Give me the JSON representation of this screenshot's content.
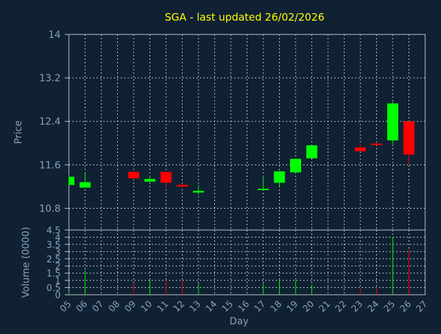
{
  "chart_data": [
    {
      "type": "candlestick",
      "title": "SGA - last updated 26/02/2026",
      "ylabel": "Price",
      "ylim": [
        10.4,
        14.0
      ],
      "yticks": [
        "10.8",
        "11.6",
        "12.4",
        "13.2",
        "14"
      ],
      "grid": true,
      "candles": [
        {
          "day": "05",
          "open": 11.23,
          "close": 11.38,
          "high": 11.42,
          "low": 11.23
        },
        {
          "day": "06",
          "open": 11.18,
          "close": 11.28,
          "high": 11.45,
          "low": 11.18
        },
        {
          "day": "09",
          "open": 11.47,
          "close": 11.35,
          "high": 11.47,
          "low": 11.35
        },
        {
          "day": "10",
          "open": 11.29,
          "close": 11.34,
          "high": 11.4,
          "low": 11.29
        },
        {
          "day": "11",
          "open": 11.47,
          "close": 11.27,
          "high": 11.47,
          "low": 11.18
        },
        {
          "day": "12",
          "open": 11.23,
          "close": 11.2,
          "high": 11.24,
          "low": 11.18
        },
        {
          "day": "13",
          "open": 11.09,
          "close": 11.12,
          "high": 11.23,
          "low": 11.05
        },
        {
          "day": "17",
          "open": 11.15,
          "close": 11.16,
          "high": 11.37,
          "low": 11.15
        },
        {
          "day": "18",
          "open": 11.27,
          "close": 11.48,
          "high": 11.48,
          "low": 11.2
        },
        {
          "day": "19",
          "open": 11.46,
          "close": 11.71,
          "high": 11.72,
          "low": 11.46
        },
        {
          "day": "20",
          "open": 11.72,
          "close": 11.96,
          "high": 11.96,
          "low": 11.72
        },
        {
          "day": "23",
          "open": 11.92,
          "close": 11.85,
          "high": 11.98,
          "low": 11.85
        },
        {
          "day": "24",
          "open": 11.99,
          "close": 11.97,
          "high": 12.02,
          "low": 11.96
        },
        {
          "day": "25",
          "open": 12.05,
          "close": 12.73,
          "high": 12.76,
          "low": 11.98
        },
        {
          "day": "26",
          "open": 12.4,
          "close": 11.79,
          "high": 12.4,
          "low": 11.6
        }
      ]
    },
    {
      "type": "bar",
      "xlabel": "Day",
      "ylabel": "Volume (0000)",
      "ylim": [
        0,
        4.5
      ],
      "yticks": [
        "0",
        "0.5",
        "1",
        "1.5",
        "2",
        "2.5",
        "3",
        "3.5",
        "4",
        "4.5"
      ],
      "categories": [
        "05",
        "06",
        "07",
        "08",
        "09",
        "10",
        "11",
        "12",
        "13",
        "14",
        "15",
        "16",
        "17",
        "18",
        "19",
        "20",
        "21",
        "22",
        "23",
        "24",
        "25",
        "26",
        "27"
      ],
      "values": [
        0.2,
        1.7,
        0,
        0,
        0.8,
        1.1,
        1.0,
        1.0,
        0.8,
        0,
        0,
        0,
        0.8,
        1.1,
        1.0,
        0.7,
        0,
        0,
        0.5,
        0.5,
        4.0,
        3.1,
        0
      ]
    }
  ],
  "colors": {
    "background": "#0f2133",
    "grid": "#c0c8d0",
    "up": "#00ff00",
    "down": "#ff0000",
    "text": "#8aa1bd",
    "title": "#ffff00"
  }
}
